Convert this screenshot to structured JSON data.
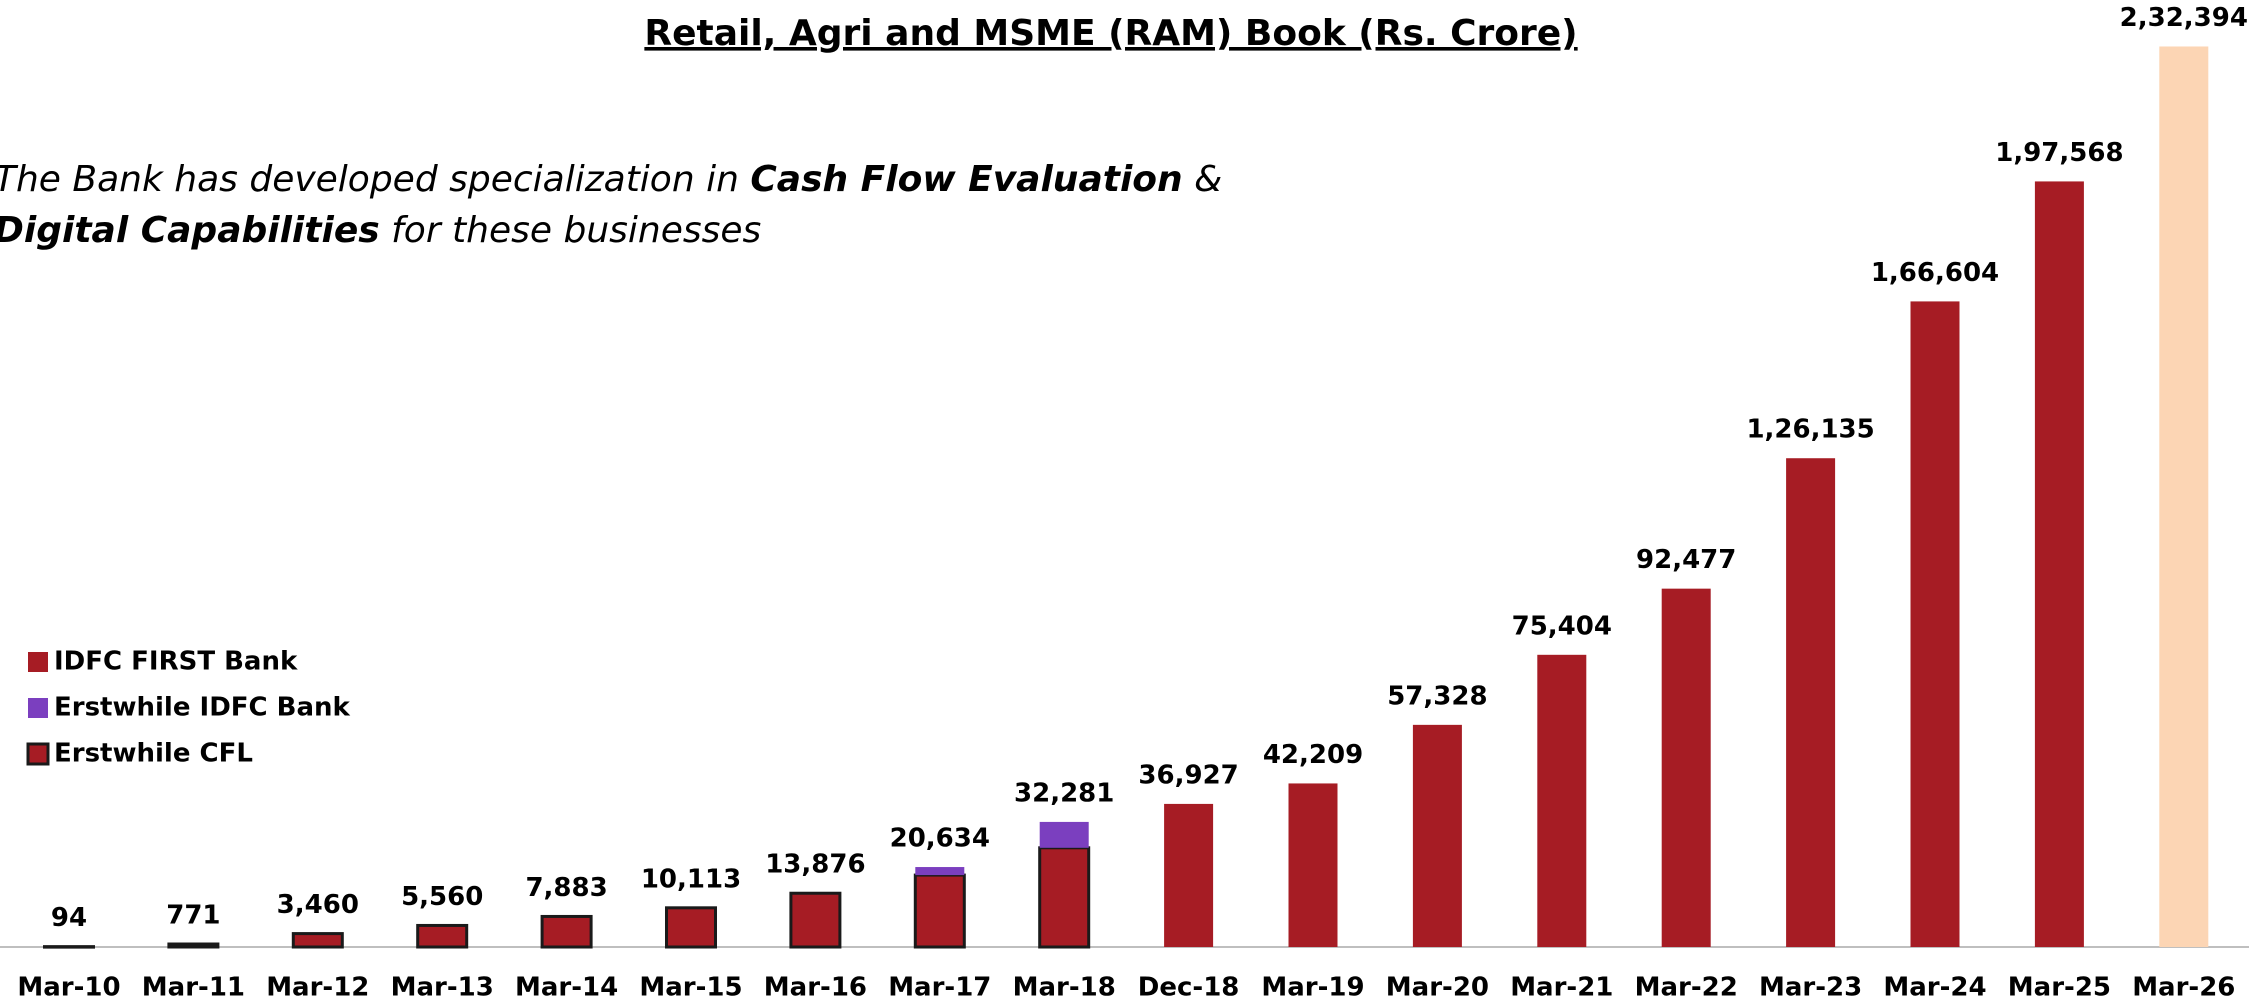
{
  "chart_data": {
    "type": "stacked_bar",
    "title": "Retail, Agri and MSME (RAM) Book (Rs. Crore)",
    "annotation_lines": [
      [
        {
          "text": "The Bank has developed specialization in ",
          "bold": false
        },
        {
          "text": "Cash Flow Evaluation",
          "bold": true
        },
        {
          "text": " &",
          "bold": false
        }
      ],
      [
        {
          "text": "Digital Capabilities",
          "bold": true
        },
        {
          "text": " for these businesses",
          "bold": false
        }
      ]
    ],
    "categories": [
      "Mar-10",
      "Mar-11",
      "Mar-12",
      "Mar-13",
      "Mar-14",
      "Mar-15",
      "Mar-16",
      "Mar-17",
      "Mar-18",
      "Dec-18",
      "Mar-19",
      "Mar-20",
      "Mar-21",
      "Mar-22",
      "Mar-23",
      "Mar-24",
      "Mar-25",
      "Mar-26"
    ],
    "series": [
      {
        "name": "IDFC FIRST Bank",
        "color": "#a61c24",
        "colors": [
          "#a61c24",
          "#a61c24",
          "#a61c24",
          "#a61c24",
          "#a61c24",
          "#a61c24",
          "#a61c24",
          "#a61c24",
          "#a61c24",
          "#a61c24",
          "#a61c24",
          "#a61c24",
          "#a61c24",
          "#a61c24",
          "#a61c24",
          "#a61c24",
          "#a61c24",
          "#fcd5b4"
        ],
        "values": [
          null,
          null,
          null,
          null,
          null,
          null,
          null,
          null,
          null,
          36927,
          42209,
          57328,
          75404,
          92477,
          126135,
          166604,
          197568,
          232394
        ]
      },
      {
        "name": "Erstwhile IDFC Bank",
        "color": "#7b3fbf",
        "values": [
          null,
          null,
          null,
          null,
          null,
          null,
          null,
          2074,
          6681,
          null,
          null,
          null,
          null,
          null,
          null,
          null,
          null,
          null
        ]
      },
      {
        "name": "Erstwhile CFL",
        "color": "#a61c24",
        "outline": "#1a1a1a",
        "values": [
          94,
          771,
          3460,
          5560,
          7883,
          10113,
          13876,
          18560,
          25600,
          null,
          null,
          null,
          null,
          null,
          null,
          null,
          null,
          null
        ]
      }
    ],
    "totals": [
      94,
      771,
      3460,
      5560,
      7883,
      10113,
      13876,
      20634,
      32281,
      36927,
      42209,
      57328,
      75404,
      92477,
      126135,
      166604,
      197568,
      232394
    ],
    "total_labels": [
      "94",
      "771",
      "3,460",
      "5,560",
      "7,883",
      "10,113",
      "13,876",
      "20,634",
      "32,281",
      "36,927",
      "42,209",
      "57,328",
      "75,404",
      "92,477",
      "1,26,135",
      "1,66,604",
      "1,97,568",
      "2,32,394"
    ],
    "ylim": [
      0,
      240000
    ],
    "legend": "left"
  }
}
